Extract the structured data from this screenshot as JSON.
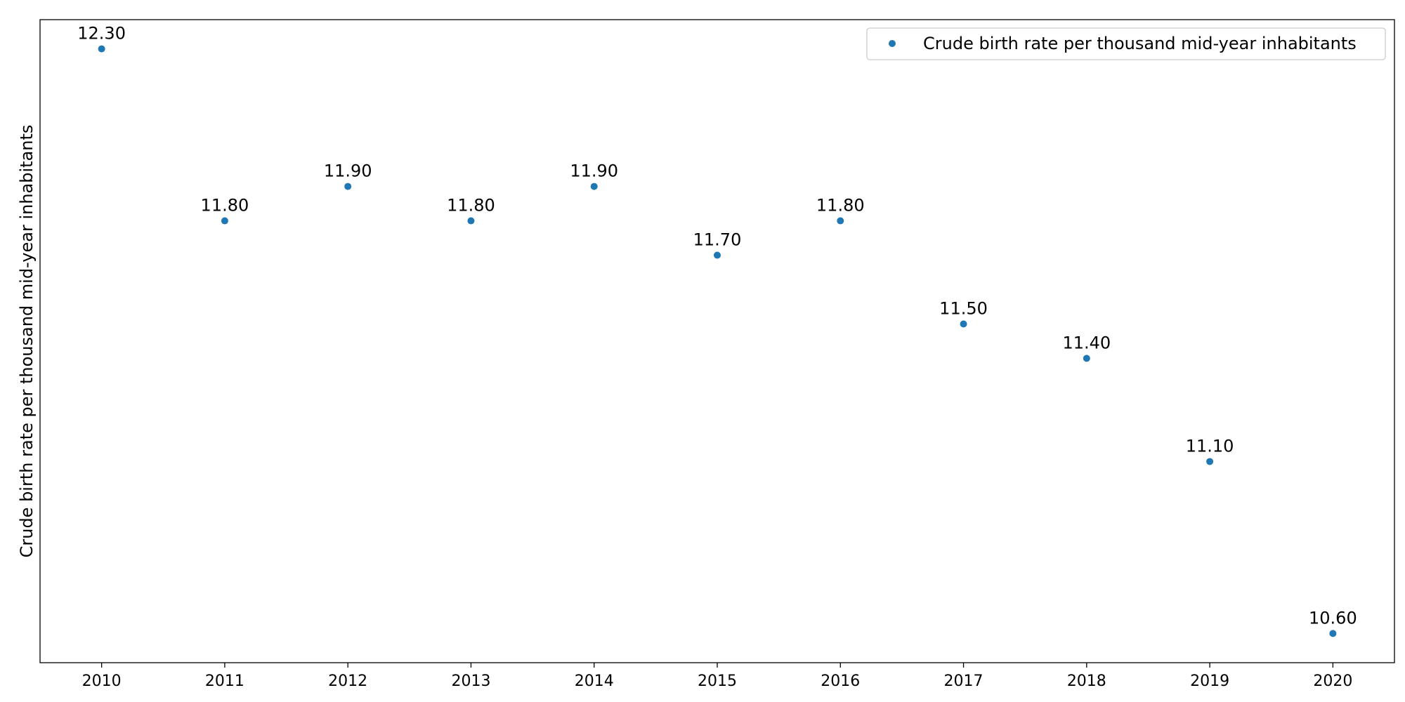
{
  "chart_data": {
    "type": "scatter",
    "title": "",
    "xlabel": "",
    "ylabel": "Crude birth rate per thousand mid-year inhabitants",
    "x": [
      2010,
      2011,
      2012,
      2013,
      2014,
      2015,
      2016,
      2017,
      2018,
      2019,
      2020
    ],
    "xticks": [
      "2010",
      "2011",
      "2012",
      "2013",
      "2014",
      "2015",
      "2016",
      "2017",
      "2018",
      "2019",
      "2020"
    ],
    "series": [
      {
        "name": "Crude birth rate per thousand mid-year inhabitants",
        "values": [
          12.3,
          11.8,
          11.9,
          11.8,
          11.9,
          11.7,
          11.8,
          11.5,
          11.4,
          11.1,
          10.6
        ],
        "labels": [
          "12.30",
          "11.80",
          "11.90",
          "11.80",
          "11.90",
          "11.70",
          "11.80",
          "11.50",
          "11.40",
          "11.10",
          "10.60"
        ],
        "color": "#1f77b4"
      }
    ],
    "xlim": [
      2009.5,
      2020.5
    ],
    "ylim": [
      10.515,
      12.385
    ],
    "y_ticks_shown": false,
    "grid": false,
    "legend": "top-right"
  }
}
